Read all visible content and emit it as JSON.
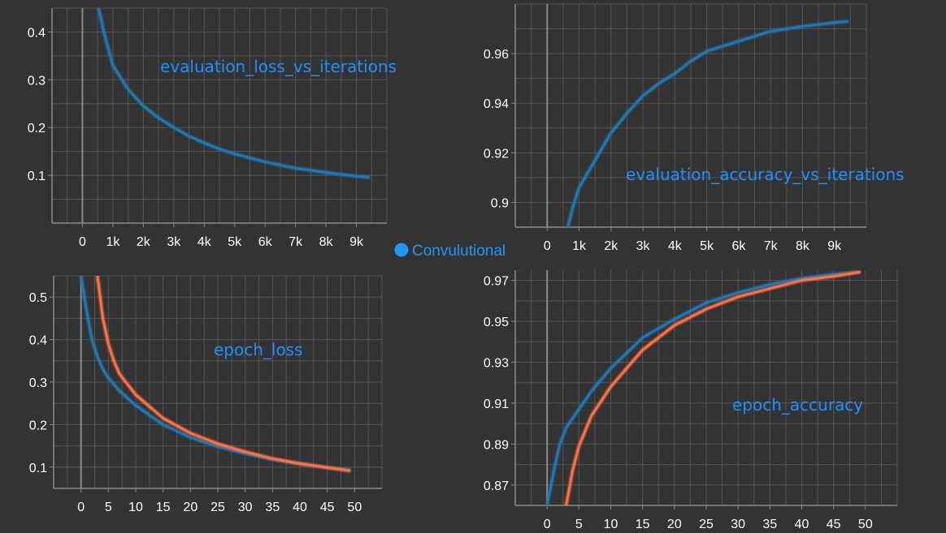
{
  "legend": {
    "label": "Convulutional",
    "color": "#2196f3"
  },
  "colors": {
    "background": "#333333",
    "grid": "#555555",
    "axis": "#8a8a8a",
    "tick_text": "#ffffff",
    "title": "#1e90ff",
    "blue_series": "#1f77b4",
    "orange_series": "#ff7043"
  },
  "chart_data": [
    {
      "type": "line",
      "title": "evaluation_loss_vs_iterations",
      "xlim": [
        -1000,
        10000
      ],
      "ylim": [
        0.0,
        0.45
      ],
      "xticks": [
        0,
        1000,
        2000,
        3000,
        4000,
        5000,
        6000,
        7000,
        8000,
        9000
      ],
      "xtick_labels": [
        "0",
        "1k",
        "2k",
        "3k",
        "4k",
        "5k",
        "6k",
        "7k",
        "8k",
        "9k"
      ],
      "yticks": [
        0.1,
        0.2,
        0.3,
        0.4
      ],
      "ytick_labels": [
        "0.1",
        "0.2",
        "0.3",
        "0.4"
      ],
      "grid": true,
      "series": [
        {
          "color": "blue",
          "x": [
            500,
            700,
            1000,
            1500,
            2000,
            2500,
            3000,
            3500,
            4000,
            4500,
            5000,
            6000,
            7000,
            8000,
            9000,
            9400
          ],
          "y": [
            0.46,
            0.4,
            0.33,
            0.28,
            0.245,
            0.22,
            0.2,
            0.182,
            0.168,
            0.155,
            0.145,
            0.128,
            0.115,
            0.106,
            0.098,
            0.096
          ]
        }
      ]
    },
    {
      "type": "line",
      "title": "evaluation_accuracy_vs_iterations",
      "xlim": [
        -1000,
        10000
      ],
      "ylim": [
        0.89,
        0.98
      ],
      "xticks": [
        0,
        1000,
        2000,
        3000,
        4000,
        5000,
        6000,
        7000,
        8000,
        9000
      ],
      "xtick_labels": [
        "0",
        "1k",
        "2k",
        "3k",
        "4k",
        "5k",
        "6k",
        "7k",
        "8k",
        "9k"
      ],
      "yticks": [
        0.9,
        0.92,
        0.94,
        0.96
      ],
      "ytick_labels": [
        "0.9",
        "0.92",
        "0.94",
        "0.96"
      ],
      "grid": true,
      "series": [
        {
          "color": "blue",
          "x": [
            650,
            800,
            1000,
            1500,
            2000,
            2500,
            3000,
            3500,
            4000,
            4500,
            5000,
            6000,
            7000,
            8000,
            9000,
            9400
          ],
          "y": [
            0.89,
            0.898,
            0.906,
            0.917,
            0.928,
            0.936,
            0.943,
            0.948,
            0.952,
            0.957,
            0.961,
            0.965,
            0.969,
            0.971,
            0.9725,
            0.973
          ]
        }
      ]
    },
    {
      "type": "line",
      "title": "epoch_loss",
      "xlim": [
        -5,
        55
      ],
      "ylim": [
        0.05,
        0.55
      ],
      "xticks": [
        0,
        5,
        10,
        15,
        20,
        25,
        30,
        35,
        40,
        45,
        50
      ],
      "xtick_labels": [
        "0",
        "5",
        "10",
        "15",
        "20",
        "25",
        "30",
        "35",
        "40",
        "45",
        "50"
      ],
      "yticks": [
        0.1,
        0.2,
        0.3,
        0.4,
        0.5
      ],
      "ytick_labels": [
        "0.1",
        "0.2",
        "0.3",
        "0.4",
        "0.5"
      ],
      "grid": true,
      "series": [
        {
          "color": "blue",
          "x": [
            0,
            1,
            2,
            3,
            4,
            5,
            7,
            10,
            15,
            20,
            25,
            30,
            35,
            40,
            45,
            49
          ],
          "y": [
            0.55,
            0.47,
            0.4,
            0.36,
            0.33,
            0.31,
            0.28,
            0.245,
            0.2,
            0.17,
            0.148,
            0.132,
            0.118,
            0.108,
            0.099,
            0.093
          ]
        },
        {
          "color": "orange",
          "x": [
            3,
            4,
            5,
            6,
            7,
            10,
            15,
            20,
            25,
            30,
            35,
            40,
            45,
            49
          ],
          "y": [
            0.55,
            0.45,
            0.39,
            0.35,
            0.32,
            0.27,
            0.215,
            0.18,
            0.155,
            0.136,
            0.12,
            0.108,
            0.099,
            0.092
          ]
        }
      ]
    },
    {
      "type": "line",
      "title": "epoch_accuracy",
      "xlim": [
        -5,
        55
      ],
      "ylim": [
        0.86,
        0.975
      ],
      "xticks": [
        0,
        5,
        10,
        15,
        20,
        25,
        30,
        35,
        40,
        45,
        50
      ],
      "xtick_labels": [
        "0",
        "5",
        "10",
        "15",
        "20",
        "25",
        "30",
        "35",
        "40",
        "45",
        "50"
      ],
      "yticks": [
        0.87,
        0.89,
        0.91,
        0.93,
        0.95,
        0.97
      ],
      "ytick_labels": [
        "0.87",
        "0.89",
        "0.91",
        "0.93",
        "0.95",
        "0.97"
      ],
      "grid": true,
      "series": [
        {
          "color": "blue",
          "x": [
            0,
            1,
            2,
            3,
            5,
            7,
            10,
            15,
            20,
            25,
            30,
            35,
            40,
            45,
            49
          ],
          "y": [
            0.86,
            0.876,
            0.89,
            0.898,
            0.907,
            0.916,
            0.927,
            0.942,
            0.951,
            0.959,
            0.964,
            0.968,
            0.971,
            0.973,
            0.974
          ]
        },
        {
          "color": "orange",
          "x": [
            3,
            4,
            5,
            7,
            10,
            15,
            20,
            25,
            30,
            35,
            40,
            45,
            49
          ],
          "y": [
            0.86,
            0.877,
            0.889,
            0.904,
            0.918,
            0.936,
            0.948,
            0.956,
            0.962,
            0.966,
            0.97,
            0.972,
            0.974
          ]
        }
      ]
    }
  ]
}
